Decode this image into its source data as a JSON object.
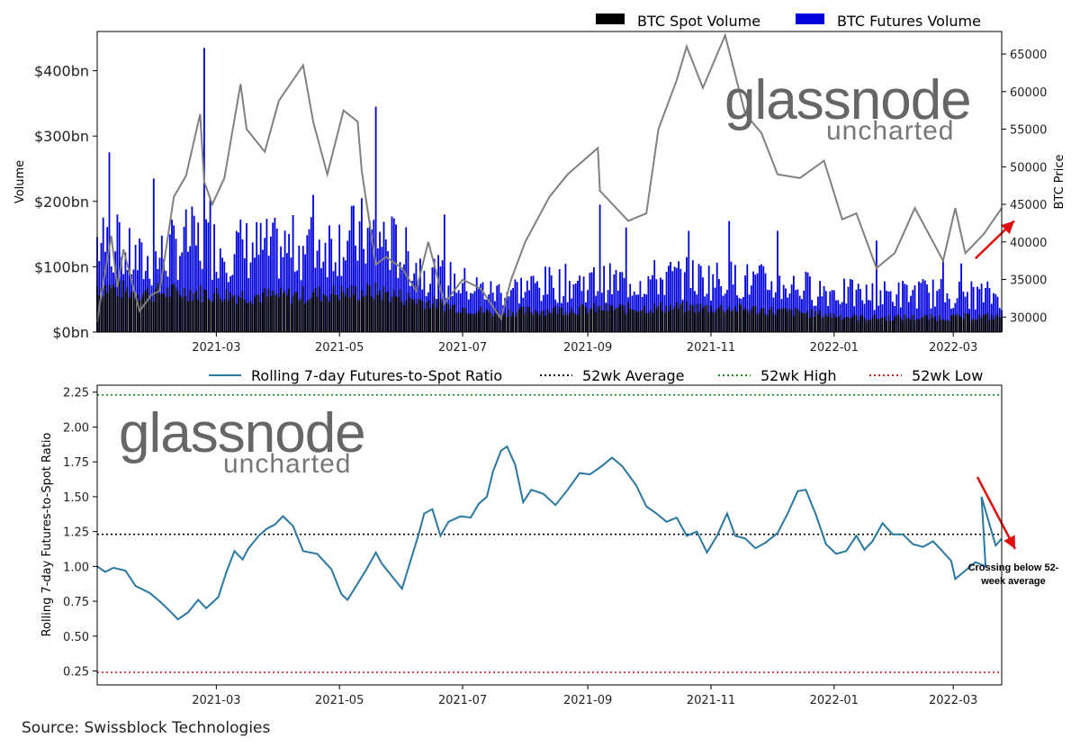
{
  "source": "Source: Swissblock Technologies",
  "watermark": {
    "line1": "glassnode",
    "line2": "uncharted"
  },
  "colors": {
    "spot": "#000000",
    "futures": "#0000dd",
    "price": "#808080",
    "ratio": "#2878a0",
    "avg": "#000000",
    "high": "#1a8a1a",
    "low": "#cc2222",
    "arrow": "#e01010"
  },
  "chart_data": [
    {
      "type": "bar",
      "title": "",
      "xlabel": "",
      "ylabel": "Volume",
      "y2label": "BTC Price",
      "x_range": [
        "2021-01-01",
        "2022-03-25"
      ],
      "x_ticks": [
        "2021-03",
        "2021-05",
        "2021-07",
        "2021-09",
        "2021-11",
        "2022-01",
        "2022-03"
      ],
      "ylim": [
        0,
        460
      ],
      "y_ticks": [
        "$0bn",
        "$100bn",
        "$200bn",
        "$300bn",
        "$400bn"
      ],
      "y2lim": [
        28000,
        68000
      ],
      "y2_ticks": [
        "30000",
        "35000",
        "40000",
        "45000",
        "50000",
        "55000",
        "60000",
        "65000"
      ],
      "legend": [
        "BTC Spot Volume",
        "BTC Futures Volume"
      ],
      "legend_position": "top-right",
      "series": [
        {
          "name": "BTC Spot Volume",
          "anchors": [
            [
              "2021-01-01",
              70
            ],
            [
              "2021-01-25",
              60
            ],
            [
              "2021-02-15",
              62
            ],
            [
              "2021-03-01",
              58
            ],
            [
              "2021-04-01",
              55
            ],
            [
              "2021-05-01",
              60
            ],
            [
              "2021-05-20",
              62
            ],
            [
              "2021-06-15",
              45
            ],
            [
              "2021-07-15",
              30
            ],
            [
              "2021-08-15",
              34
            ],
            [
              "2021-09-15",
              36
            ],
            [
              "2021-10-15",
              38
            ],
            [
              "2021-11-15",
              36
            ],
            [
              "2021-12-15",
              30
            ],
            [
              "2022-01-15",
              22
            ],
            [
              "2022-02-15",
              22
            ],
            [
              "2022-03-25",
              24
            ]
          ]
        },
        {
          "name": "BTC Futures Volume",
          "anchors": [
            [
              "2021-01-01",
              150
            ],
            [
              "2021-01-25",
              110
            ],
            [
              "2021-02-15",
              150
            ],
            [
              "2021-03-01",
              140
            ],
            [
              "2021-04-01",
              135
            ],
            [
              "2021-05-01",
              150
            ],
            [
              "2021-05-20",
              160
            ],
            [
              "2021-06-15",
              95
            ],
            [
              "2021-07-15",
              65
            ],
            [
              "2021-08-15",
              80
            ],
            [
              "2021-09-15",
              82
            ],
            [
              "2021-10-15",
              90
            ],
            [
              "2021-11-15",
              85
            ],
            [
              "2021-12-15",
              75
            ],
            [
              "2022-01-15",
              60
            ],
            [
              "2022-02-15",
              65
            ],
            [
              "2022-03-25",
              60
            ]
          ],
          "spikes": [
            [
              "2021-01-07",
              275
            ],
            [
              "2021-01-11",
              180
            ],
            [
              "2021-01-29",
              235
            ],
            [
              "2021-02-23",
              435
            ],
            [
              "2021-02-26",
              205
            ],
            [
              "2021-04-18",
              210
            ],
            [
              "2021-05-19",
              345
            ],
            [
              "2021-05-12",
              205
            ],
            [
              "2021-06-22",
              180
            ],
            [
              "2021-09-07",
              195
            ],
            [
              "2021-09-20",
              160
            ],
            [
              "2021-10-21",
              155
            ],
            [
              "2021-11-10",
              170
            ],
            [
              "2021-12-04",
              155
            ],
            [
              "2022-01-22",
              140
            ],
            [
              "2022-02-24",
              110
            ],
            [
              "2022-03-05",
              105
            ]
          ]
        },
        {
          "name": "BTC Price",
          "axis": "right",
          "points": [
            [
              "2021-01-01",
              29300
            ],
            [
              "2021-01-03",
              33000
            ],
            [
              "2021-01-08",
              40800
            ],
            [
              "2021-01-11",
              34000
            ],
            [
              "2021-01-14",
              39000
            ],
            [
              "2021-01-22",
              30800
            ],
            [
              "2021-01-28",
              33000
            ],
            [
              "2021-02-01",
              33500
            ],
            [
              "2021-02-08",
              46000
            ],
            [
              "2021-02-14",
              48800
            ],
            [
              "2021-02-21",
              57000
            ],
            [
              "2021-02-23",
              48000
            ],
            [
              "2021-02-27",
              45000
            ],
            [
              "2021-03-05",
              48500
            ],
            [
              "2021-03-13",
              61000
            ],
            [
              "2021-03-16",
              55000
            ],
            [
              "2021-03-25",
              52000
            ],
            [
              "2021-04-01",
              58800
            ],
            [
              "2021-04-13",
              63500
            ],
            [
              "2021-04-18",
              56000
            ],
            [
              "2021-04-25",
              49000
            ],
            [
              "2021-05-03",
              57500
            ],
            [
              "2021-05-10",
              56000
            ],
            [
              "2021-05-12",
              49500
            ],
            [
              "2021-05-19",
              37000
            ],
            [
              "2021-05-24",
              38000
            ],
            [
              "2021-06-01",
              36500
            ],
            [
              "2021-06-08",
              33500
            ],
            [
              "2021-06-14",
              40000
            ],
            [
              "2021-06-22",
              31800
            ],
            [
              "2021-07-01",
              35000
            ],
            [
              "2021-07-10",
              33800
            ],
            [
              "2021-07-20",
              29800
            ],
            [
              "2021-07-25",
              35000
            ],
            [
              "2021-08-01",
              40000
            ],
            [
              "2021-08-13",
              46000
            ],
            [
              "2021-08-22",
              49000
            ],
            [
              "2021-09-06",
              52500
            ],
            [
              "2021-09-07",
              46800
            ],
            [
              "2021-09-21",
              42800
            ],
            [
              "2021-09-30",
              43800
            ],
            [
              "2021-10-06",
              55000
            ],
            [
              "2021-10-15",
              61500
            ],
            [
              "2021-10-20",
              66000
            ],
            [
              "2021-10-28",
              60500
            ],
            [
              "2021-11-08",
              67500
            ],
            [
              "2021-11-18",
              57000
            ],
            [
              "2021-11-26",
              54500
            ],
            [
              "2021-12-04",
              49000
            ],
            [
              "2021-12-15",
              48500
            ],
            [
              "2021-12-27",
              50800
            ],
            [
              "2022-01-05",
              43000
            ],
            [
              "2022-01-12",
              43800
            ],
            [
              "2022-01-22",
              36500
            ],
            [
              "2022-01-31",
              38500
            ],
            [
              "2022-02-10",
              44500
            ],
            [
              "2022-02-24",
              37500
            ],
            [
              "2022-03-02",
              44500
            ],
            [
              "2022-03-07",
              38500
            ],
            [
              "2022-03-16",
              41000
            ],
            [
              "2022-03-25",
              44500
            ]
          ]
        }
      ],
      "annotation_arrow": {
        "from": [
          "2022-03-12",
          37800
        ],
        "to": [
          "2022-03-25",
          42800
        ]
      }
    },
    {
      "type": "line",
      "title": "",
      "xlabel": "",
      "ylabel": "Rolling 7-day Futures-to-Spot Ratio",
      "x_range": [
        "2021-01-01",
        "2022-03-25"
      ],
      "x_ticks": [
        "2021-03",
        "2021-05",
        "2021-07",
        "2021-09",
        "2021-11",
        "2022-01",
        "2022-03"
      ],
      "ylim": [
        0.15,
        2.3
      ],
      "y_ticks": [
        "0.25",
        "0.50",
        "0.75",
        "1.00",
        "1.25",
        "1.50",
        "1.75",
        "2.00",
        "2.25"
      ],
      "legend": [
        "Rolling 7-day Futures-to-Spot Ratio",
        "52wk Average",
        "52wk High",
        "52wk Low"
      ],
      "legend_position": "top-right",
      "series": [
        {
          "name": "Rolling 7-day Futures-to-Spot Ratio",
          "points": [
            [
              "2021-01-01",
              1.0
            ],
            [
              "2021-01-05",
              0.96
            ],
            [
              "2021-01-09",
              0.99
            ],
            [
              "2021-01-15",
              0.97
            ],
            [
              "2021-01-20",
              0.86
            ],
            [
              "2021-01-27",
              0.81
            ],
            [
              "2021-02-01",
              0.75
            ],
            [
              "2021-02-06",
              0.68
            ],
            [
              "2021-02-10",
              0.62
            ],
            [
              "2021-02-15",
              0.67
            ],
            [
              "2021-02-20",
              0.76
            ],
            [
              "2021-02-24",
              0.7
            ],
            [
              "2021-03-02",
              0.78
            ],
            [
              "2021-03-06",
              0.96
            ],
            [
              "2021-03-10",
              1.11
            ],
            [
              "2021-03-14",
              1.05
            ],
            [
              "2021-03-17",
              1.13
            ],
            [
              "2021-03-22",
              1.22
            ],
            [
              "2021-03-26",
              1.27
            ],
            [
              "2021-03-30",
              1.3
            ],
            [
              "2021-04-03",
              1.36
            ],
            [
              "2021-04-08",
              1.29
            ],
            [
              "2021-04-13",
              1.11
            ],
            [
              "2021-04-20",
              1.09
            ],
            [
              "2021-04-27",
              0.98
            ],
            [
              "2021-05-02",
              0.8
            ],
            [
              "2021-05-05",
              0.76
            ],
            [
              "2021-05-11",
              0.9
            ],
            [
              "2021-05-14",
              0.97
            ],
            [
              "2021-05-19",
              1.1
            ],
            [
              "2021-05-22",
              1.02
            ],
            [
              "2021-05-27",
              0.93
            ],
            [
              "2021-06-01",
              0.84
            ],
            [
              "2021-06-05",
              1.03
            ],
            [
              "2021-06-09",
              1.22
            ],
            [
              "2021-06-12",
              1.38
            ],
            [
              "2021-06-16",
              1.41
            ],
            [
              "2021-06-20",
              1.22
            ],
            [
              "2021-06-24",
              1.32
            ],
            [
              "2021-06-30",
              1.36
            ],
            [
              "2021-07-05",
              1.35
            ],
            [
              "2021-07-09",
              1.45
            ],
            [
              "2021-07-13",
              1.5
            ],
            [
              "2021-07-16",
              1.68
            ],
            [
              "2021-07-20",
              1.83
            ],
            [
              "2021-07-23",
              1.86
            ],
            [
              "2021-07-27",
              1.73
            ],
            [
              "2021-07-31",
              1.46
            ],
            [
              "2021-08-04",
              1.55
            ],
            [
              "2021-08-10",
              1.52
            ],
            [
              "2021-08-16",
              1.44
            ],
            [
              "2021-08-22",
              1.55
            ],
            [
              "2021-08-28",
              1.67
            ],
            [
              "2021-09-02",
              1.66
            ],
            [
              "2021-09-08",
              1.72
            ],
            [
              "2021-09-13",
              1.78
            ],
            [
              "2021-09-18",
              1.72
            ],
            [
              "2021-09-25",
              1.58
            ],
            [
              "2021-09-30",
              1.43
            ],
            [
              "2021-10-05",
              1.38
            ],
            [
              "2021-10-10",
              1.32
            ],
            [
              "2021-10-15",
              1.35
            ],
            [
              "2021-10-20",
              1.22
            ],
            [
              "2021-10-25",
              1.25
            ],
            [
              "2021-10-30",
              1.1
            ],
            [
              "2021-11-04",
              1.22
            ],
            [
              "2021-11-09",
              1.38
            ],
            [
              "2021-11-13",
              1.22
            ],
            [
              "2021-11-18",
              1.2
            ],
            [
              "2021-11-23",
              1.13
            ],
            [
              "2021-11-28",
              1.17
            ],
            [
              "2021-12-04",
              1.24
            ],
            [
              "2021-12-09",
              1.38
            ],
            [
              "2021-12-14",
              1.54
            ],
            [
              "2021-12-18",
              1.55
            ],
            [
              "2021-12-23",
              1.37
            ],
            [
              "2021-12-28",
              1.16
            ],
            [
              "2022-01-02",
              1.09
            ],
            [
              "2022-01-07",
              1.11
            ],
            [
              "2022-01-12",
              1.22
            ],
            [
              "2022-01-16",
              1.12
            ],
            [
              "2022-01-20",
              1.18
            ],
            [
              "2022-01-25",
              1.31
            ],
            [
              "2022-01-30",
              1.23
            ],
            [
              "2022-02-04",
              1.23
            ],
            [
              "2022-02-09",
              1.16
            ],
            [
              "2022-02-14",
              1.14
            ],
            [
              "2022-02-19",
              1.18
            ],
            [
              "2022-02-23",
              1.12
            ],
            [
              "2022-02-28",
              1.04
            ],
            [
              "2022-03-02",
              0.91
            ],
            [
              "2022-03-07",
              0.97
            ],
            [
              "2022-03-12",
              1.03
            ],
            [
              "2022-03-17",
              1.0
            ],
            [
              "2022-03-22",
              1.32
            ],
            [
              "2022-03-25",
              1.47
            ]
          ]
        }
      ],
      "reference_lines": [
        {
          "name": "52wk Average",
          "value": 1.23
        },
        {
          "name": "52wk High",
          "value": 2.23
        },
        {
          "name": "52wk Low",
          "value": 0.24
        }
      ],
      "annotation": {
        "text": "Crossing below 52-week average",
        "lines": [
          "Crossing below 52-",
          "week average"
        ]
      },
      "annotation_arrow": {
        "from": [
          "2022-03-10",
          1.65
        ],
        "to": [
          "2022-03-25",
          1.13
        ]
      }
    }
  ]
}
